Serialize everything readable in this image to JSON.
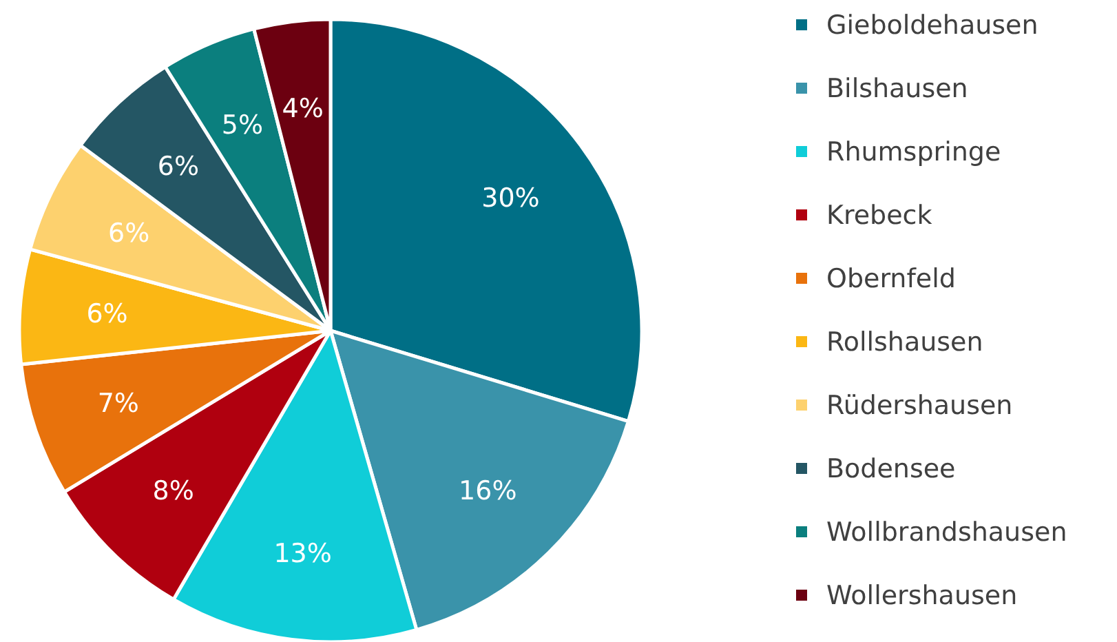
{
  "chart_data": {
    "type": "pie",
    "categories": [
      "Gieboldehausen",
      "Bilshausen",
      "Rhumspringe",
      "Krebeck",
      "Obernfeld",
      "Rollshausen",
      "Rüdershausen",
      "Bodensee",
      "Wollbrandshausen",
      "Wollershausen"
    ],
    "values": [
      30,
      16,
      13,
      8,
      7,
      6,
      6,
      6,
      5,
      4
    ],
    "colors": [
      "#006f86",
      "#3a93aa",
      "#10cdd8",
      "#b0000f",
      "#e8720c",
      "#fbb714",
      "#fdd16e",
      "#245664",
      "#0b7f7e",
      "#6c0010"
    ],
    "value_labels": [
      "30%",
      "16%",
      "13%",
      "8%",
      "7%",
      "6%",
      "6%",
      "6%",
      "5%",
      "4%"
    ],
    "legend": "right"
  }
}
